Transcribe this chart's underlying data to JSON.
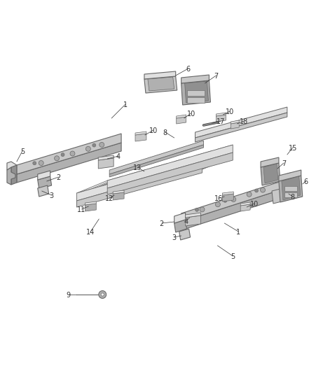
{
  "bg_color": "#ffffff",
  "line_color": "#666666",
  "label_color": "#333333",
  "figsize": [
    4.38,
    5.33
  ],
  "dpi": 100
}
